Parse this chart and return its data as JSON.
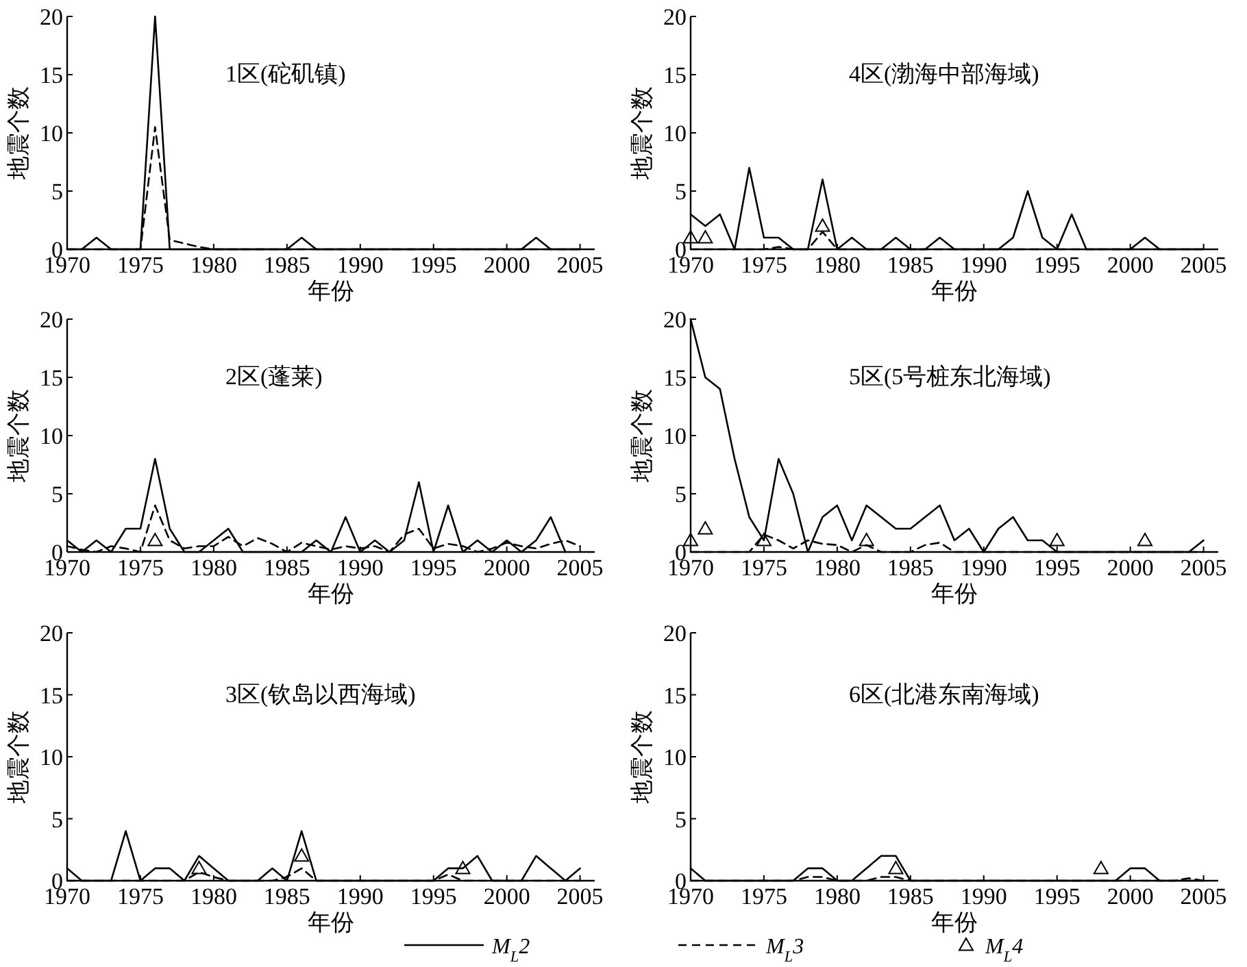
{
  "chart_data": [
    {
      "type": "line",
      "title": "1区(砣矶镇)",
      "xlabel": "年份",
      "ylabel": "地震个数",
      "xlim": [
        1970,
        2006
      ],
      "ylim": [
        0,
        20
      ],
      "xticks": [
        1970,
        1975,
        1980,
        1985,
        1990,
        1995,
        2000,
        2005
      ],
      "yticks": [
        0,
        5,
        10,
        15,
        20
      ],
      "x": [
        1970,
        1971,
        1972,
        1973,
        1974,
        1975,
        1976,
        1977,
        1978,
        1979,
        1980,
        1981,
        1982,
        1983,
        1984,
        1985,
        1986,
        1987,
        1988,
        1989,
        1990,
        1991,
        1992,
        1993,
        1994,
        1995,
        1996,
        1997,
        1998,
        1999,
        2000,
        2001,
        2002,
        2003,
        2004,
        2005
      ],
      "series": [
        {
          "color": "#000000",
          "line_style": "solid",
          "values": [
            0,
            0,
            1,
            0,
            0,
            0,
            20,
            0,
            0,
            0,
            0,
            0,
            0,
            0,
            0,
            0,
            1,
            0,
            0,
            0,
            0,
            0,
            0,
            0,
            0,
            0,
            0,
            0,
            0,
            0,
            0,
            0,
            1,
            0,
            0,
            0
          ]
        },
        {
          "color": "#000000",
          "line_style": "dashed",
          "values": [
            0,
            0,
            0,
            0,
            0,
            0,
            10.5,
            0.8,
            0.5,
            0.2,
            0,
            0,
            0,
            0,
            0,
            0,
            0,
            0,
            0,
            0,
            0,
            0,
            0,
            0,
            0,
            0,
            0,
            0,
            0,
            0,
            0,
            0,
            0,
            0,
            0,
            0
          ]
        }
      ]
    },
    {
      "type": "line",
      "title": "4区(渤海中部海域)",
      "xlabel": "年份",
      "ylabel": "地震个数",
      "xlim": [
        1970,
        2006
      ],
      "ylim": [
        0,
        20
      ],
      "xticks": [
        1970,
        1975,
        1980,
        1985,
        1990,
        1995,
        2000,
        2005
      ],
      "yticks": [
        0,
        5,
        10,
        15,
        20
      ],
      "x": [
        1970,
        1971,
        1972,
        1973,
        1974,
        1975,
        1976,
        1977,
        1978,
        1979,
        1980,
        1981,
        1982,
        1983,
        1984,
        1985,
        1986,
        1987,
        1988,
        1989,
        1990,
        1991,
        1992,
        1993,
        1994,
        1995,
        1996,
        1997,
        1998,
        1999,
        2000,
        2001,
        2002,
        2003,
        2004,
        2005
      ],
      "series": [
        {
          "color": "#000000",
          "line_style": "solid",
          "values": [
            3,
            2,
            3,
            0,
            7,
            1,
            1,
            0,
            0,
            6,
            0,
            1,
            0,
            0,
            1,
            0,
            0,
            1,
            0,
            0,
            0,
            0,
            1,
            5,
            1,
            0,
            3,
            0,
            0,
            0,
            0,
            1,
            0,
            0,
            0,
            0
          ]
        },
        {
          "color": "#000000",
          "line_style": "dashed",
          "values": [
            0,
            0,
            0,
            0,
            0,
            0,
            0.2,
            0,
            0,
            1.5,
            0,
            0,
            0,
            0,
            0,
            0,
            0,
            0,
            0,
            0,
            0,
            0,
            0,
            0,
            0,
            0,
            0,
            0,
            0,
            0,
            0,
            0,
            0,
            0,
            0,
            0
          ]
        },
        {
          "type": "scatter",
          "marker": "triangle",
          "color": "#000000",
          "x": [
            1970,
            1971,
            1979
          ],
          "values": [
            1,
            1,
            2
          ]
        }
      ]
    },
    {
      "type": "line",
      "title": "2区(蓬莱)",
      "xlabel": "年份",
      "ylabel": "地震个数",
      "xlim": [
        1970,
        2006
      ],
      "ylim": [
        0,
        20
      ],
      "xticks": [
        1970,
        1975,
        1980,
        1985,
        1990,
        1995,
        2000,
        2005
      ],
      "yticks": [
        0,
        5,
        10,
        15,
        20
      ],
      "x": [
        1970,
        1971,
        1972,
        1973,
        1974,
        1975,
        1976,
        1977,
        1978,
        1979,
        1980,
        1981,
        1982,
        1983,
        1984,
        1985,
        1986,
        1987,
        1988,
        1989,
        1990,
        1991,
        1992,
        1993,
        1994,
        1995,
        1996,
        1997,
        1998,
        1999,
        2000,
        2001,
        2002,
        2003,
        2004,
        2005
      ],
      "series": [
        {
          "color": "#000000",
          "line_style": "solid",
          "values": [
            1,
            0,
            1,
            0,
            2,
            2,
            8,
            2,
            0,
            0,
            1,
            2,
            0,
            0,
            0,
            0,
            0,
            1,
            0,
            3,
            0,
            1,
            0,
            1,
            6,
            0,
            4,
            0,
            1,
            0,
            1,
            0,
            1,
            3,
            0,
            null
          ]
        },
        {
          "color": "#000000",
          "line_style": "dashed",
          "values": [
            0.5,
            0.2,
            0,
            0.5,
            0.3,
            0,
            4,
            1,
            0.3,
            0.5,
            0.5,
            1.3,
            0.5,
            1.2,
            0.7,
            0,
            0.8,
            0.5,
            0.2,
            0.5,
            0.3,
            0.5,
            0,
            1.5,
            2,
            0.3,
            0.7,
            0.5,
            0,
            0.3,
            0.8,
            0.5,
            0.3,
            0.7,
            1,
            0.5
          ]
        },
        {
          "type": "scatter",
          "marker": "triangle",
          "color": "#000000",
          "x": [
            1976
          ],
          "values": [
            1
          ]
        }
      ]
    },
    {
      "type": "line",
      "title": "5区(5号桩东北海域)",
      "xlabel": "年份",
      "ylabel": "地震个数",
      "xlim": [
        1970,
        2006
      ],
      "ylim": [
        0,
        20
      ],
      "xticks": [
        1970,
        1975,
        1980,
        1985,
        1990,
        1995,
        2000,
        2005
      ],
      "yticks": [
        0,
        5,
        10,
        15,
        20
      ],
      "x": [
        1970,
        1971,
        1972,
        1973,
        1974,
        1975,
        1976,
        1977,
        1978,
        1979,
        1980,
        1981,
        1982,
        1983,
        1984,
        1985,
        1986,
        1987,
        1988,
        1989,
        1990,
        1991,
        1992,
        1993,
        1994,
        1995,
        1996,
        1997,
        1998,
        1999,
        2000,
        2001,
        2002,
        2003,
        2004,
        2005
      ],
      "series": [
        {
          "color": "#000000",
          "line_style": "solid",
          "values": [
            20,
            15,
            14,
            8,
            3,
            1,
            8,
            5,
            0,
            3,
            4,
            1,
            4,
            3,
            2,
            2,
            3,
            4,
            1,
            2,
            0,
            2,
            3,
            1,
            1,
            0,
            0,
            0,
            0,
            0,
            0,
            0,
            0,
            0,
            0,
            1
          ]
        },
        {
          "color": "#000000",
          "line_style": "dashed",
          "values": [
            0,
            0,
            0,
            0,
            0,
            1.5,
            1,
            0.3,
            1,
            0.7,
            0.6,
            0,
            0.6,
            0,
            0,
            0,
            0.6,
            0.8,
            0,
            0,
            0,
            0,
            0,
            0,
            0,
            0,
            0,
            0,
            0,
            0,
            0,
            0,
            0,
            0,
            0,
            0
          ]
        },
        {
          "type": "scatter",
          "marker": "triangle",
          "color": "#000000",
          "x": [
            1970,
            1971,
            1975,
            1982,
            1995,
            2001
          ],
          "values": [
            1,
            2,
            1,
            1,
            1,
            1
          ]
        }
      ]
    },
    {
      "type": "line",
      "title": "3区(钦岛以西海域)",
      "xlabel": "年份",
      "ylabel": "地震个数",
      "xlim": [
        1970,
        2006
      ],
      "ylim": [
        0,
        20
      ],
      "xticks": [
        1970,
        1975,
        1980,
        1985,
        1990,
        1995,
        2000,
        2005
      ],
      "yticks": [
        0,
        5,
        10,
        15,
        20
      ],
      "x": [
        1970,
        1971,
        1972,
        1973,
        1974,
        1975,
        1976,
        1977,
        1978,
        1979,
        1980,
        1981,
        1982,
        1983,
        1984,
        1985,
        1986,
        1987,
        1988,
        1989,
        1990,
        1991,
        1992,
        1993,
        1994,
        1995,
        1996,
        1997,
        1998,
        1999,
        2000,
        2001,
        2002,
        2003,
        2004,
        2005
      ],
      "series": [
        {
          "color": "#000000",
          "line_style": "solid",
          "values": [
            1,
            0,
            0,
            0,
            4,
            0,
            1,
            1,
            0,
            2,
            1,
            0,
            0,
            0,
            1,
            0,
            4,
            0,
            0,
            0,
            0,
            0,
            0,
            0,
            0,
            0,
            1,
            1,
            2,
            0,
            0,
            0,
            2,
            1,
            0,
            1
          ]
        },
        {
          "color": "#000000",
          "line_style": "dashed",
          "values": [
            0,
            0,
            0,
            0,
            0,
            0,
            0,
            0,
            0,
            0.7,
            0.3,
            0,
            0,
            0,
            0,
            0.3,
            1,
            0,
            0,
            0,
            0,
            0,
            0,
            0,
            0,
            0,
            0.5,
            0,
            0,
            0,
            0,
            0,
            0,
            0,
            0,
            0
          ]
        },
        {
          "type": "scatter",
          "marker": "triangle",
          "color": "#000000",
          "x": [
            1979,
            1986,
            1997
          ],
          "values": [
            1,
            2,
            1
          ]
        }
      ]
    },
    {
      "type": "line",
      "title": "6区(北港东南海域)",
      "xlabel": "年份",
      "ylabel": "地震个数",
      "xlim": [
        1970,
        2006
      ],
      "ylim": [
        0,
        20
      ],
      "xticks": [
        1970,
        1975,
        1980,
        1985,
        1990,
        1995,
        2000,
        2005
      ],
      "yticks": [
        0,
        5,
        10,
        15,
        20
      ],
      "legend": "bottom",
      "x": [
        1970,
        1971,
        1972,
        1973,
        1974,
        1975,
        1976,
        1977,
        1978,
        1979,
        1980,
        1981,
        1982,
        1983,
        1984,
        1985,
        1986,
        1987,
        1988,
        1989,
        1990,
        1991,
        1992,
        1993,
        1994,
        1995,
        1996,
        1997,
        1998,
        1999,
        2000,
        2001,
        2002,
        2003,
        2004,
        2005
      ],
      "series": [
        {
          "name": "M$_{L}$2",
          "color": "#000000",
          "line_style": "solid",
          "values": [
            1,
            0,
            0,
            0,
            0,
            0,
            0,
            0,
            1,
            1,
            0,
            0,
            1,
            2,
            2,
            0,
            0,
            0,
            0,
            0,
            0,
            0,
            0,
            0,
            0,
            0,
            0,
            0,
            0,
            0,
            1,
            1,
            0,
            0,
            0,
            0
          ]
        },
        {
          "name": "M$_{L}$3",
          "color": "#000000",
          "line_style": "dashed",
          "values": [
            0,
            0,
            0,
            0,
            0,
            0,
            0,
            0,
            0.3,
            0.3,
            0,
            0,
            0,
            0.3,
            0.3,
            0,
            0,
            0,
            0,
            0,
            0,
            0,
            0,
            0,
            0,
            0,
            0,
            0,
            0,
            0,
            0,
            0,
            0,
            0,
            0.2,
            0
          ]
        },
        {
          "name": "M$_{L}$4",
          "type": "scatter",
          "marker": "triangle",
          "color": "#000000",
          "x": [
            1984,
            1998
          ],
          "values": [
            1,
            1
          ]
        }
      ]
    }
  ]
}
